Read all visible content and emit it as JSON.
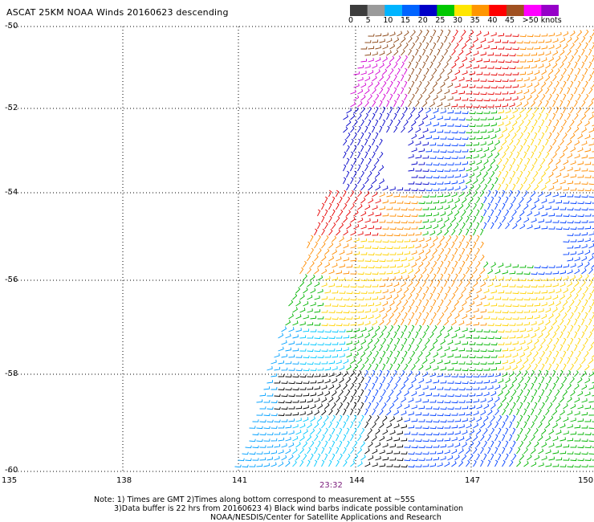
{
  "title": "ASCAT 25KM NOAA Winds 20160623 descending",
  "color_scale": {
    "labels": [
      "0",
      "5",
      "10",
      "15",
      "20",
      "25",
      "30",
      "35",
      "40",
      "45",
      ">50 knots"
    ],
    "colors": [
      "#3c3c3c",
      "#9a9a9a",
      "#00b4ff",
      "#0064ff",
      "#0000c8",
      "#00c800",
      "#ffe600",
      "#ff9600",
      "#ff0000",
      "#a05020",
      "#ff00ff",
      "#9600c8"
    ]
  },
  "axes": {
    "longitude_ticks": [
      "135",
      "138",
      "141",
      "144",
      "147",
      "150"
    ],
    "latitude_ticks": [
      "-50",
      "-52",
      "-54",
      "-56",
      "-58",
      "-60"
    ],
    "lon_range": [
      135,
      150
    ],
    "lat_range": [
      -60,
      -50
    ]
  },
  "time_label": "23:32",
  "notes": {
    "line1": "Note: 1) Times are GMT 2)Times along bottom correspond to measurement at ~55S",
    "line2": "3)Data buffer is 22 hrs from 20160623 4) Black wind barbs indicate possible contamination",
    "line3": "NOAA/NESDIS/Center for Satellite Applications and Research"
  }
}
